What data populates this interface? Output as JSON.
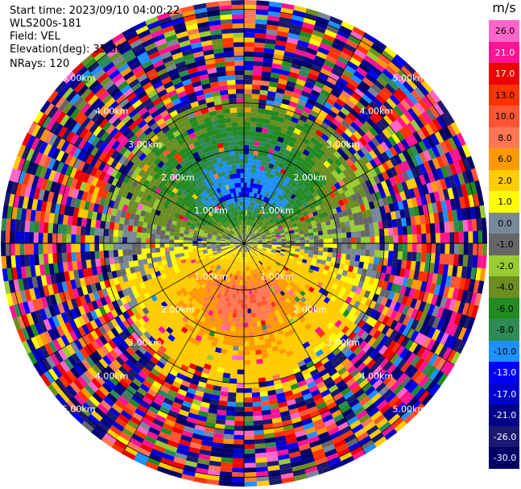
{
  "info": {
    "start_time": "Start time: 2023/09/10 04:00:22",
    "instrument": "WLS200s-181",
    "field": "Field: VEL",
    "elevation": "Elevation(deg): 35.30",
    "nrays": "NRays: 120"
  },
  "chart_data": {
    "type": "heatmap",
    "projection": "polar",
    "n_rays": 120,
    "elevation_deg": 35.3,
    "max_range_km": 5.2,
    "range_rings_km": [
      1,
      2,
      3,
      4,
      5
    ],
    "ring_labels": [
      "1.00km",
      "2.00km",
      "3.00km",
      "4.00km",
      "5.00km"
    ],
    "field": "VEL",
    "unit": "m/s",
    "colorbar": {
      "ticks": [
        "26.0",
        "21.0",
        "17.0",
        "13.0",
        "10.0",
        "8.0",
        "6.0",
        "2.0",
        "1.0",
        "0.0",
        "-1.0",
        "-2.0",
        "-4.0",
        "-6.0",
        "-8.0",
        "-10.0",
        "-13.0",
        "-17.0",
        "-21.0",
        "-26.0",
        "-30.0"
      ],
      "colors": [
        "#ff66cc",
        "#ff1493",
        "#ee0000",
        "#ff3300",
        "#ff5533",
        "#ff7755",
        "#ff9900",
        "#ffcc00",
        "#ffff00",
        "#778899",
        "#666666",
        "#99cc33",
        "#6b8e23",
        "#228b22",
        "#2e8b57",
        "#1e90ff",
        "#0000ff",
        "#0000cd",
        "#00008b",
        "#191970",
        "#000066"
      ]
    },
    "pattern": {
      "noise_start_km": 3.0,
      "positive_lobe": "south (toward)",
      "negative_lobe": "north (away)",
      "peak_positive": 10.0,
      "peak_negative": -10.0
    }
  }
}
